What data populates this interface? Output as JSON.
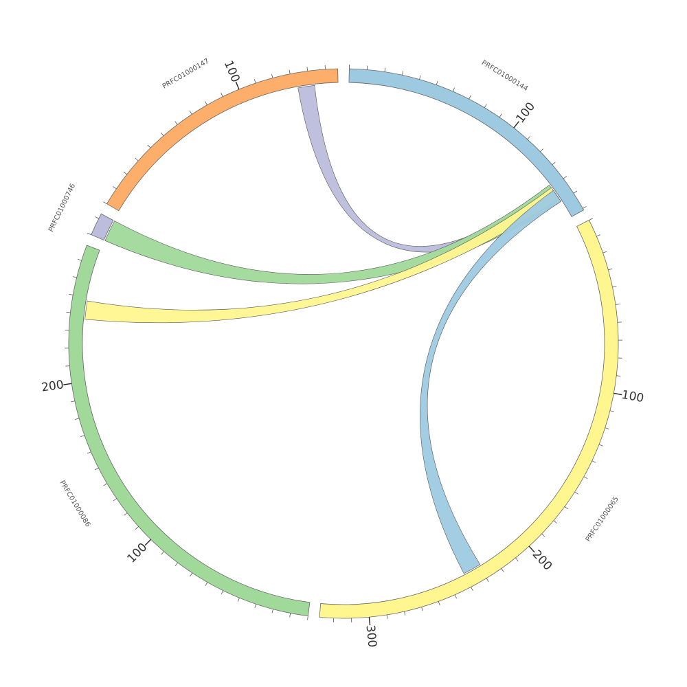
{
  "chart_data": {
    "type": "chord",
    "minor_tick_interval": 10,
    "segments": [
      {
        "name": "PRFC01000144",
        "length": 161,
        "color": "#9ecae1",
        "ticks": [
          100
        ]
      },
      {
        "name": "PRFC01000065",
        "length": 328,
        "color": "#fff68f",
        "ticks": [
          100,
          200,
          300
        ]
      },
      {
        "name": "PRFC01000086",
        "length": 279,
        "color": "#a1d99b",
        "ticks": [
          100,
          200
        ]
      },
      {
        "name": "PRFC01000746",
        "length": 13,
        "color": "#bcbddc",
        "ticks": []
      },
      {
        "name": "PRFC01000147",
        "length": 157,
        "color": "#fdae6b",
        "ticks": [
          100
        ]
      }
    ],
    "links": [
      {
        "color": "#bcbddc",
        "source": {
          "segment": "PRFC01000147",
          "start": 133,
          "end": 143
        },
        "target": {
          "segment": "PRFC01000144",
          "start": 140,
          "end": 150
        }
      },
      {
        "color": "#a1d99b",
        "source": {
          "segment": "PRFC01000746",
          "start": 0,
          "end": 13
        },
        "target": {
          "segment": "PRFC01000144",
          "start": 138,
          "end": 150
        }
      },
      {
        "color": "#fff68f",
        "source": {
          "segment": "PRFC01000086",
          "start": 237,
          "end": 248
        },
        "target": {
          "segment": "PRFC01000144",
          "start": 140,
          "end": 148
        }
      },
      {
        "color": "#9ecae1",
        "source": {
          "segment": "PRFC01000065",
          "start": 229,
          "end": 240
        },
        "target": {
          "segment": "PRFC01000144",
          "start": 142,
          "end": 150
        }
      }
    ]
  }
}
